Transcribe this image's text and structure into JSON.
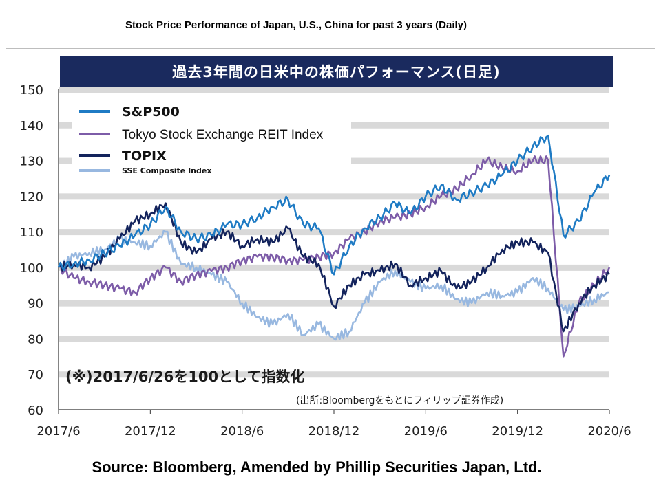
{
  "header": {
    "title": "Stock Price Performance of Japan, U.S., China for past 3 years (Daily)"
  },
  "banner": {
    "title": "過去3年間の日米中の株価パフォーマンス(日足)"
  },
  "annotations": {
    "index_note": "(※)2017/6/26を100として指数化",
    "source_note": "(出所:Bloombergをもとにフィリップ証券作成)"
  },
  "footer": {
    "source": "Source: Bloomberg, Amended by Phillip Securities Japan, Ltd."
  },
  "colors": {
    "sp500": "#1f7bc4",
    "reit": "#7d5ca8",
    "topix": "#13235c",
    "sse": "#98b8e0",
    "banner": "#1a2a5e",
    "gridband": "#d9d9d9"
  },
  "chart_data": {
    "type": "line",
    "title": "過去3年間の日米中の株価パフォーマンス(日足)",
    "xlabel": "",
    "ylabel": "",
    "ylim": [
      60,
      150
    ],
    "yticks": [
      60,
      70,
      80,
      90,
      100,
      110,
      120,
      130,
      140,
      150
    ],
    "xticks": [
      "2017/6",
      "2017/12",
      "2018/6",
      "2018/12",
      "2019/6",
      "2019/12",
      "2020/6"
    ],
    "grid": "horizontal bands",
    "legend_position": "top-left",
    "x": [
      "2017/6",
      "2017/7",
      "2017/8",
      "2017/9",
      "2017/10",
      "2017/11",
      "2017/12",
      "2018/1",
      "2018/2",
      "2018/3",
      "2018/4",
      "2018/5",
      "2018/6",
      "2018/7",
      "2018/8",
      "2018/9",
      "2018/10",
      "2018/11",
      "2018/12",
      "2019/1",
      "2019/2",
      "2019/3",
      "2019/4",
      "2019/5",
      "2019/6",
      "2019/7",
      "2019/8",
      "2019/9",
      "2019/10",
      "2019/11",
      "2019/12",
      "2020/1",
      "2020/2",
      "2020/3",
      "2020/4",
      "2020/5",
      "2020/6"
    ],
    "series": [
      {
        "name": "S&P500",
        "color": "#1f7bc4",
        "values": [
          100,
          101,
          102,
          104,
          106,
          109,
          112,
          117,
          110,
          108,
          109,
          112,
          112,
          114,
          117,
          119,
          112,
          111,
          98,
          106,
          111,
          114,
          118,
          115,
          120,
          123,
          119,
          121,
          123,
          126,
          130,
          134,
          137,
          109,
          113,
          121,
          126
        ]
      },
      {
        "name": "Tokyo Stock Exchange REIT Index",
        "color": "#7d5ca8",
        "values": [
          100,
          97,
          96,
          95,
          94,
          93,
          97,
          100,
          96,
          98,
          99,
          100,
          102,
          103,
          103,
          102,
          102,
          103,
          104,
          108,
          110,
          113,
          114,
          115,
          117,
          120,
          122,
          126,
          130,
          128,
          127,
          130,
          130,
          75,
          90,
          95,
          100
        ]
      },
      {
        "name": "TOPIX",
        "color": "#13235c",
        "values": [
          100,
          101,
          100,
          103,
          108,
          113,
          115,
          118,
          107,
          104,
          108,
          110,
          106,
          108,
          107,
          111,
          103,
          101,
          89,
          95,
          98,
          99,
          101,
          95,
          97,
          99,
          94,
          96,
          100,
          105,
          107,
          107,
          104,
          82,
          90,
          95,
          98
        ]
      },
      {
        "name": "SSE Composite Index",
        "color": "#98b8e0",
        "values": [
          100,
          103,
          104,
          105,
          108,
          107,
          106,
          110,
          101,
          100,
          98,
          96,
          90,
          86,
          84,
          87,
          81,
          84,
          80,
          82,
          90,
          96,
          99,
          96,
          94,
          95,
          91,
          90,
          93,
          92,
          93,
          97,
          94,
          88,
          89,
          91,
          93
        ]
      }
    ]
  }
}
